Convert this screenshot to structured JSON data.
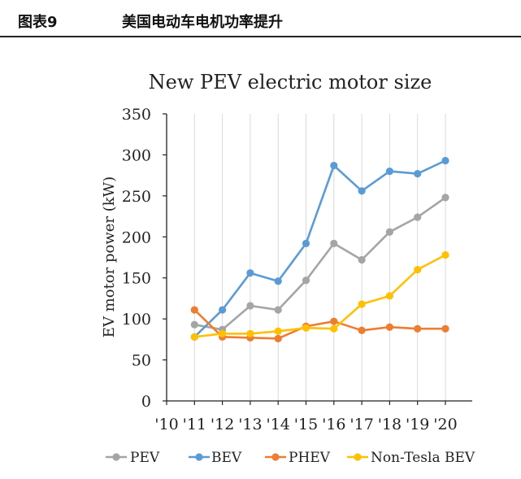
{
  "header": {
    "figure_label": "图表9",
    "caption": "美国电动车电机功率提升"
  },
  "chart_data": {
    "type": "line",
    "title": "New PEV electric motor size",
    "xlabel": "",
    "ylabel": "EV motor power (kW)",
    "categories": [
      "'10",
      "'11",
      "'12",
      "'13",
      "'14",
      "'15",
      "'16",
      "'17",
      "'18",
      "'19",
      "'20"
    ],
    "ylim": [
      0,
      350
    ],
    "yticks": [
      0,
      50,
      100,
      150,
      200,
      250,
      300,
      350
    ],
    "grid": "vertical",
    "legend_position": "bottom",
    "series": [
      {
        "name": "PEV",
        "color": "#a5a5a5",
        "values": [
          null,
          93,
          87,
          116,
          111,
          147,
          192,
          172,
          206,
          224,
          248
        ]
      },
      {
        "name": "BEV",
        "color": "#5b9bd5",
        "values": [
          null,
          78,
          111,
          156,
          146,
          192,
          287,
          256,
          280,
          277,
          293
        ]
      },
      {
        "name": "PHEV",
        "color": "#ed7d31",
        "values": [
          null,
          111,
          78,
          77,
          76,
          91,
          97,
          86,
          90,
          88,
          88
        ]
      },
      {
        "name": "Non-Tesla BEV",
        "color": "#ffc000",
        "values": [
          null,
          78,
          82,
          82,
          85,
          89,
          88,
          118,
          128,
          160,
          178
        ]
      }
    ]
  }
}
